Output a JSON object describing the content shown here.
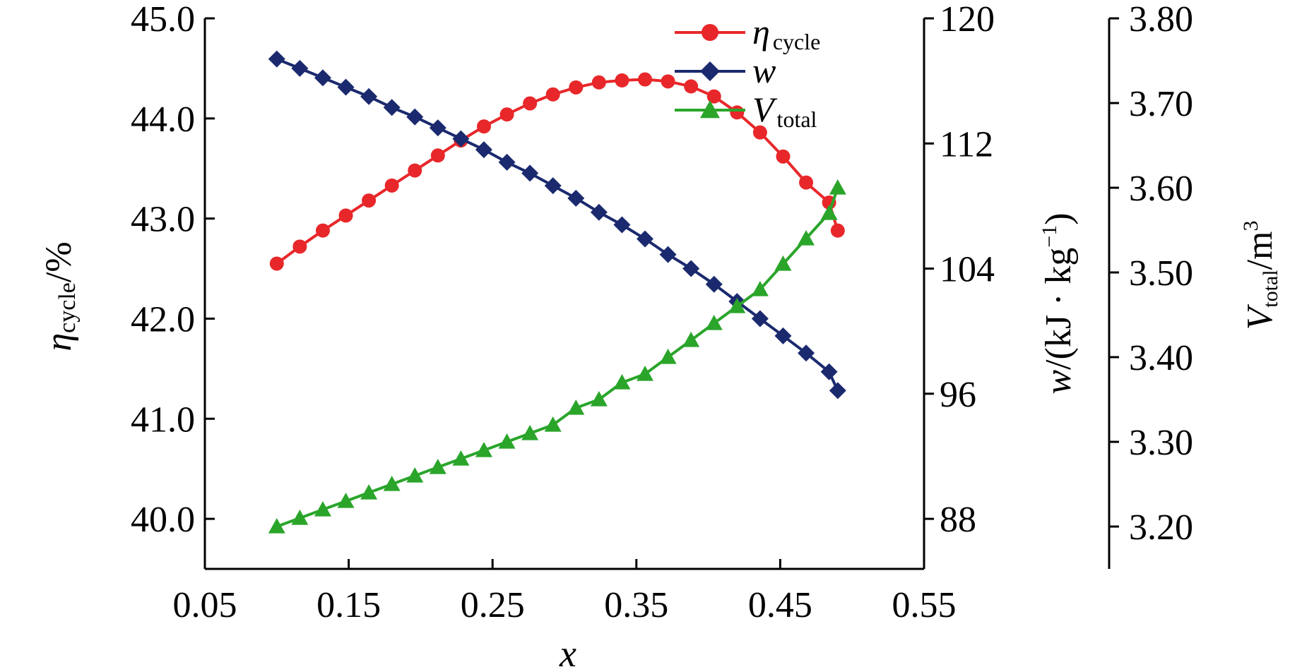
{
  "chart_data": {
    "type": "line",
    "x": [
      0.1,
      0.116,
      0.132,
      0.148,
      0.164,
      0.18,
      0.196,
      0.212,
      0.228,
      0.244,
      0.26,
      0.276,
      0.292,
      0.308,
      0.324,
      0.34,
      0.356,
      0.372,
      0.388,
      0.404,
      0.42,
      0.436,
      0.452,
      0.468,
      0.484,
      0.49
    ],
    "x_axis": {
      "label": "x",
      "range": [
        0.05,
        0.55
      ],
      "ticks": [
        "0.05",
        "0.15",
        "0.25",
        "0.35",
        "0.45",
        "0.55"
      ]
    },
    "y_axes": [
      {
        "id": "eta",
        "label_main": "η",
        "label_sub": "cycle",
        "label_rest": "/%",
        "range": [
          39.5,
          45.0
        ],
        "ticks": [
          "40.0",
          "41.0",
          "42.0",
          "43.0",
          "44.0",
          "45.0"
        ],
        "tick_values": [
          40,
          41,
          42,
          43,
          44,
          45
        ]
      },
      {
        "id": "w",
        "label_main": "w",
        "label_rest": "/(kJ · kg",
        "label_sup": "−1",
        "label_close": ")",
        "range": [
          84.8,
          120
        ],
        "ticks": [
          "88",
          "96",
          "104",
          "112",
          "120"
        ],
        "tick_values": [
          88,
          96,
          104,
          112,
          120
        ]
      },
      {
        "id": "v",
        "label_main": "V",
        "label_sub": "total",
        "label_rest": "/m",
        "label_sup": "3",
        "range": [
          3.15,
          3.8
        ],
        "ticks": [
          "3.20",
          "3.30",
          "3.40",
          "3.50",
          "3.60",
          "3.70",
          "3.80"
        ],
        "tick_values": [
          3.2,
          3.3,
          3.4,
          3.5,
          3.6,
          3.7,
          3.8
        ]
      }
    ],
    "series": [
      {
        "name": "η cycle",
        "legend_main": "η",
        "legend_sub": "cycle",
        "axis": "eta",
        "color": "#e8272a",
        "marker": "circle",
        "values": [
          42.55,
          42.72,
          42.88,
          43.03,
          43.18,
          43.33,
          43.48,
          43.63,
          43.78,
          43.92,
          44.04,
          44.15,
          44.24,
          44.31,
          44.36,
          44.38,
          44.39,
          44.37,
          44.32,
          44.22,
          44.06,
          43.86,
          43.62,
          43.36,
          43.16,
          42.88
        ]
      },
      {
        "name": "w",
        "legend_main": "w",
        "legend_sub": "",
        "axis": "w",
        "color": "#1b2a6e",
        "marker": "diamond",
        "values": [
          117.4,
          116.8,
          116.2,
          115.6,
          115.0,
          114.3,
          113.7,
          113.0,
          112.3,
          111.6,
          110.8,
          110.1,
          109.3,
          108.5,
          107.6,
          106.8,
          105.9,
          104.9,
          104.0,
          103.0,
          101.9,
          100.8,
          99.7,
          98.6,
          97.4,
          96.2
        ]
      },
      {
        "name": "V total",
        "legend_main": "V",
        "legend_sub": "total",
        "axis": "v",
        "color": "#2aa52a",
        "marker": "triangle",
        "values": [
          3.2,
          3.21,
          3.22,
          3.23,
          3.24,
          3.25,
          3.26,
          3.27,
          3.28,
          3.29,
          3.3,
          3.31,
          3.32,
          3.34,
          3.35,
          3.37,
          3.38,
          3.4,
          3.42,
          3.44,
          3.46,
          3.48,
          3.51,
          3.54,
          3.57,
          3.6
        ]
      }
    ],
    "legend_position": "top-center",
    "grid": false
  }
}
